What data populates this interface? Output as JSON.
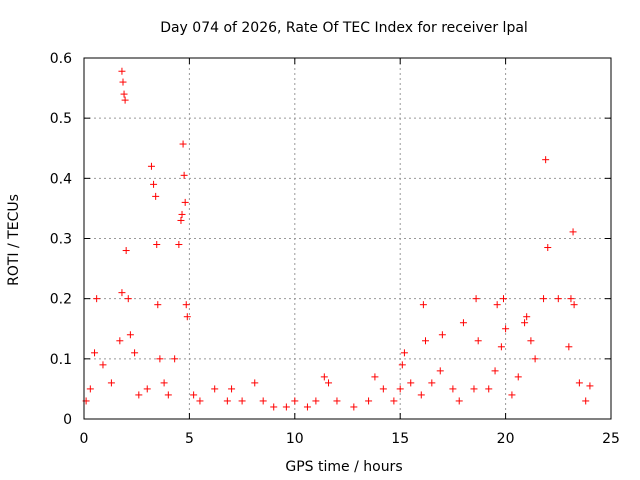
{
  "chart_data": {
    "type": "scatter",
    "title": "Day 074 of 2026, Rate Of TEC Index for receiver lpal",
    "xlabel": "GPS time / hours",
    "ylabel": "ROTI / TECUs",
    "xlim": [
      0,
      25
    ],
    "ylim": [
      0,
      0.6
    ],
    "grid": true,
    "xticks": [
      0,
      5,
      10,
      15,
      20,
      25
    ],
    "xtick_labels": [
      "0",
      "5",
      "10",
      "15",
      "20",
      "25"
    ],
    "yticks": [
      0,
      0.1,
      0.2,
      0.3,
      0.4,
      0.5,
      0.6
    ],
    "ytick_labels": [
      "0",
      "0.1",
      "0.2",
      "0.3",
      "0.4",
      "0.5",
      "0.6"
    ],
    "marker": "+",
    "color": "#ff0000",
    "series": [
      {
        "name": "ROTI",
        "x": [
          0.1,
          0.3,
          0.5,
          0.6,
          0.9,
          1.3,
          1.7,
          1.8,
          1.8,
          1.85,
          1.9,
          1.95,
          2.0,
          2.1,
          2.2,
          2.4,
          2.6,
          3.0,
          3.2,
          3.3,
          3.4,
          3.45,
          3.5,
          3.6,
          3.8,
          4.0,
          4.3,
          4.5,
          4.6,
          4.65,
          4.7,
          4.75,
          4.8,
          4.85,
          4.9,
          5.2,
          5.5,
          6.2,
          6.8,
          7.0,
          7.5,
          8.1,
          8.5,
          9.0,
          9.6,
          10.0,
          10.6,
          11.0,
          11.4,
          11.6,
          12.0,
          12.8,
          13.5,
          13.8,
          14.2,
          14.7,
          15.0,
          15.1,
          15.2,
          15.5,
          16.0,
          16.1,
          16.2,
          16.5,
          16.9,
          17.0,
          17.5,
          17.8,
          18.0,
          18.5,
          18.6,
          18.7,
          19.2,
          19.5,
          19.6,
          19.8,
          19.9,
          20.0,
          20.3,
          20.6,
          20.9,
          21.0,
          21.2,
          21.4,
          21.8,
          21.9,
          22.0,
          22.5,
          23.0,
          23.1,
          23.2,
          23.25,
          23.5,
          23.8,
          24.0
        ],
        "y": [
          0.03,
          0.05,
          0.11,
          0.2,
          0.09,
          0.06,
          0.13,
          0.21,
          0.578,
          0.56,
          0.54,
          0.53,
          0.28,
          0.2,
          0.14,
          0.11,
          0.04,
          0.05,
          0.42,
          0.39,
          0.37,
          0.29,
          0.19,
          0.1,
          0.06,
          0.04,
          0.1,
          0.29,
          0.33,
          0.34,
          0.457,
          0.405,
          0.36,
          0.19,
          0.17,
          0.04,
          0.03,
          0.05,
          0.03,
          0.05,
          0.03,
          0.06,
          0.03,
          0.02,
          0.02,
          0.03,
          0.02,
          0.03,
          0.07,
          0.06,
          0.03,
          0.02,
          0.03,
          0.07,
          0.05,
          0.03,
          0.05,
          0.09,
          0.11,
          0.06,
          0.04,
          0.19,
          0.13,
          0.06,
          0.08,
          0.14,
          0.05,
          0.03,
          0.16,
          0.05,
          0.2,
          0.13,
          0.05,
          0.08,
          0.19,
          0.12,
          0.2,
          0.15,
          0.04,
          0.07,
          0.16,
          0.17,
          0.13,
          0.1,
          0.2,
          0.431,
          0.285,
          0.2,
          0.12,
          0.2,
          0.311,
          0.19,
          0.06,
          0.03,
          0.055
        ]
      }
    ]
  }
}
